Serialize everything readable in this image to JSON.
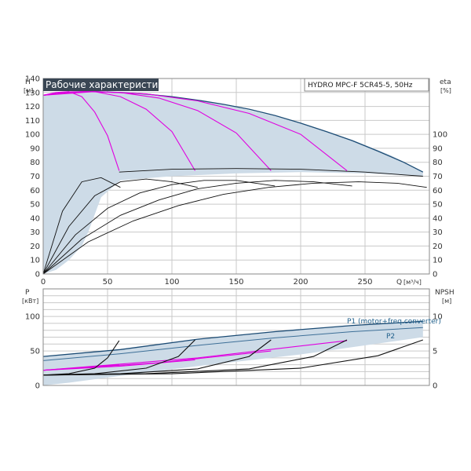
{
  "title": "Рабочие характеристики",
  "model": "HYDRO MPC-F 5CR45-5, 50Hz",
  "colors": {
    "envelope_fill": "#cddbe7",
    "envelope_edge": "#1b4b74",
    "speed_curves": "#e000e0",
    "curves": "#111111",
    "grid": "#c9c9c9",
    "title_bg": "#3a4654"
  },
  "chart_data": [
    {
      "type": "line",
      "panel": "head-efficiency",
      "ylabel": "H",
      "yunit": "[м]",
      "y2label": "eta",
      "y2unit": "[%]",
      "xlabel": "Q",
      "xunit": "[м³/ч]",
      "xlim": [
        0,
        300
      ],
      "ylim": [
        0,
        140
      ],
      "y2lim": [
        0,
        140
      ],
      "x_ticks": [
        0,
        50,
        100,
        150,
        200,
        250
      ],
      "y_ticks": [
        0,
        10,
        20,
        30,
        40,
        50,
        60,
        70,
        80,
        90,
        100,
        110,
        120,
        130,
        140
      ],
      "y2_ticks": [
        0,
        10,
        20,
        30,
        40,
        50,
        60,
        70,
        80,
        90,
        100
      ],
      "grid": true,
      "envelope": {
        "x": [
          0,
          30,
          60,
          90,
          120,
          150,
          180,
          210,
          240,
          270,
          295,
          295,
          250,
          200,
          150,
          100,
          60,
          45,
          35,
          30,
          20,
          10,
          0
        ],
        "y": [
          128,
          130.6,
          130,
          128,
          124.5,
          119.5,
          113,
          105,
          96,
          85,
          73,
          70,
          72,
          73,
          72,
          70,
          67,
          55,
          30,
          20,
          10,
          3,
          0
        ]
      },
      "series": [
        {
          "group": "head-max",
          "x": [
            0,
            20,
            40,
            60,
            80,
            100,
            120,
            140,
            160,
            180,
            200,
            220,
            240,
            260,
            280,
            295
          ],
          "y": [
            128,
            130.4,
            130.6,
            130,
            128.8,
            127,
            124.5,
            121.5,
            118,
            113.5,
            108,
            102,
            95.5,
            88,
            80,
            73
          ]
        },
        {
          "group": "speed",
          "x": [
            0,
            10,
            20,
            30,
            40,
            50,
            59
          ],
          "y": [
            128,
            130,
            130.6,
            127,
            116,
            99,
            74
          ]
        },
        {
          "group": "speed",
          "x": [
            0,
            20,
            40,
            60,
            80,
            100,
            118
          ],
          "y": [
            128,
            130.4,
            130.6,
            127,
            118,
            102,
            74
          ]
        },
        {
          "group": "speed",
          "x": [
            0,
            30,
            60,
            90,
            120,
            150,
            177
          ],
          "y": [
            128,
            130.6,
            130,
            126,
            117,
            101,
            74
          ]
        },
        {
          "group": "speed",
          "x": [
            0,
            40,
            80,
            120,
            160,
            200,
            236
          ],
          "y": [
            128,
            130.6,
            129,
            124,
            115,
            100,
            74
          ]
        },
        {
          "group": "head-min",
          "x": [
            59,
            100,
            150,
            200,
            250,
            295
          ],
          "y": [
            73,
            75,
            75.5,
            75,
            73,
            70
          ]
        },
        {
          "group": "eta",
          "x": [
            0,
            15,
            30,
            45,
            60
          ],
          "y": [
            0,
            45,
            66,
            69,
            62
          ]
        },
        {
          "group": "eta",
          "x": [
            0,
            20,
            40,
            60,
            80,
            100,
            120
          ],
          "y": [
            0,
            34,
            56,
            66,
            68,
            66,
            62
          ]
        },
        {
          "group": "eta",
          "x": [
            0,
            25,
            50,
            75,
            100,
            125,
            150,
            180
          ],
          "y": [
            0,
            28,
            47,
            58,
            64,
            67,
            67,
            63
          ]
        },
        {
          "group": "eta",
          "x": [
            0,
            30,
            60,
            90,
            120,
            150,
            180,
            210,
            240
          ],
          "y": [
            0,
            25,
            42,
            53,
            61,
            65,
            67,
            66,
            63
          ]
        },
        {
          "group": "eta",
          "x": [
            0,
            35,
            70,
            105,
            140,
            175,
            210,
            245,
            275,
            298
          ],
          "y": [
            0,
            23,
            38,
            49,
            57,
            62,
            65,
            66,
            65,
            62
          ]
        }
      ]
    },
    {
      "type": "line",
      "panel": "power-npsh",
      "ylabel": "P",
      "yunit": "[кВт]",
      "y2label": "NPSH",
      "y2unit": "[м]",
      "xlim": [
        0,
        300
      ],
      "ylim": [
        0,
        140
      ],
      "y2lim": [
        0,
        14
      ],
      "y_ticks": [
        0,
        50,
        100
      ],
      "y2_ticks": [
        0,
        5,
        10
      ],
      "grid": true,
      "legend": [
        "P1 (motor+freq.converter)",
        "P2"
      ],
      "series": [
        {
          "group": "P1",
          "name": "P1 (motor+freq.converter)",
          "x": [
            0,
            60,
            120,
            180,
            240,
            295
          ],
          "y": [
            42,
            52,
            67,
            78,
            87,
            93
          ]
        },
        {
          "group": "P2",
          "name": "P2",
          "x": [
            0,
            60,
            120,
            180,
            240,
            295
          ],
          "y": [
            36,
            46,
            58,
            69,
            78,
            84
          ]
        },
        {
          "group": "speed",
          "x": [
            0,
            30,
            59
          ],
          "y": [
            22,
            26,
            30
          ]
        },
        {
          "group": "speed",
          "x": [
            0,
            60,
            118
          ],
          "y": [
            22,
            28,
            37
          ]
        },
        {
          "group": "speed",
          "x": [
            0,
            90,
            177
          ],
          "y": [
            22,
            33,
            50
          ]
        },
        {
          "group": "speed",
          "x": [
            0,
            120,
            236
          ],
          "y": [
            22,
            40,
            65
          ]
        },
        {
          "group": "npsh",
          "x": [
            0,
            20,
            40,
            50,
            59
          ],
          "y": [
            1.5,
            1.7,
            2.5,
            4.0,
            6.5
          ]
        },
        {
          "group": "npsh",
          "x": [
            0,
            40,
            80,
            105,
            118
          ],
          "y": [
            1.5,
            1.7,
            2.5,
            4.2,
            6.6
          ]
        },
        {
          "group": "npsh",
          "x": [
            0,
            60,
            120,
            160,
            177
          ],
          "y": [
            1.5,
            1.7,
            2.4,
            4.2,
            6.6
          ]
        },
        {
          "group": "npsh",
          "x": [
            0,
            80,
            160,
            210,
            236
          ],
          "y": [
            1.5,
            1.7,
            2.4,
            4.2,
            6.6
          ]
        },
        {
          "group": "npsh",
          "x": [
            0,
            100,
            200,
            260,
            295
          ],
          "y": [
            1.5,
            1.7,
            2.5,
            4.3,
            6.6
          ]
        }
      ]
    }
  ]
}
